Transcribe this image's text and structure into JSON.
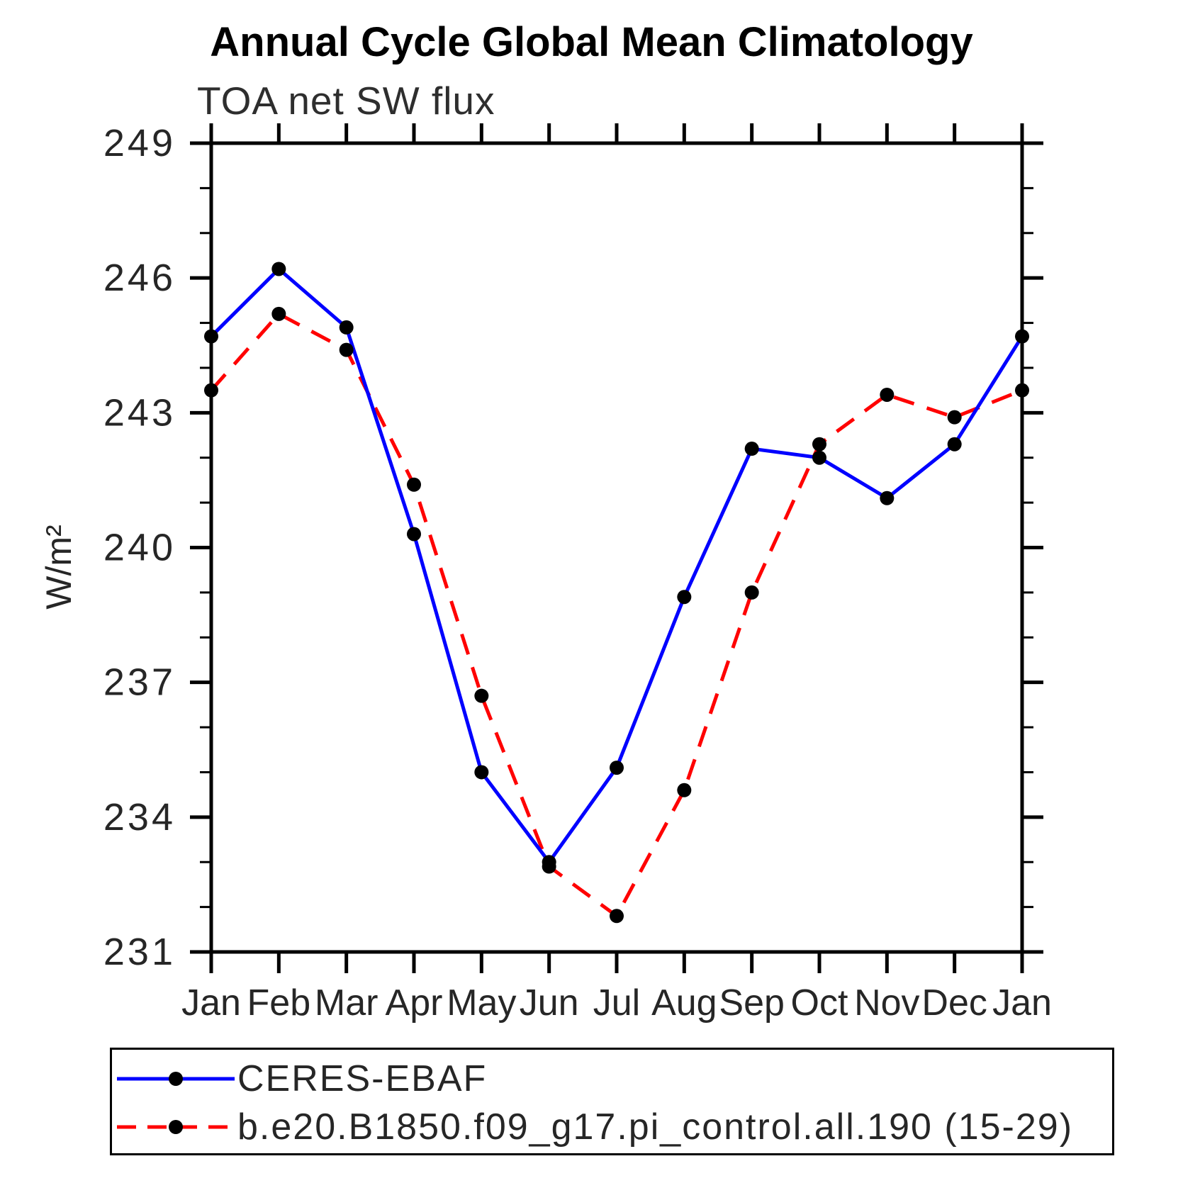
{
  "page": {
    "background": "#ffffff"
  },
  "chart_data": {
    "type": "line",
    "title": "Annual Cycle Global Mean Climatology",
    "subtitle": "TOA net SW flux",
    "xlabel": "",
    "ylabel": "W/m²",
    "ylim": [
      231,
      249
    ],
    "yticks": [
      231,
      234,
      237,
      240,
      243,
      246,
      249
    ],
    "ytick_minor_interval": 1,
    "grid": false,
    "legend_position": "bottom-left box",
    "categories": [
      "Jan",
      "Feb",
      "Mar",
      "Apr",
      "May",
      "Jun",
      "Jul",
      "Aug",
      "Sep",
      "Oct",
      "Nov",
      "Dec",
      "Jan"
    ],
    "series": [
      {
        "name": "CERES-EBAF",
        "color": "#0000ff",
        "line_style": "solid",
        "marker": "filled-circle",
        "marker_color": "#000000",
        "values": [
          244.7,
          246.2,
          244.9,
          240.3,
          235.0,
          233.0,
          235.1,
          238.9,
          242.2,
          242.0,
          241.1,
          242.3,
          244.7
        ]
      },
      {
        "name": "b.e20.B1850.f09_g17.pi_control.all.190 (15-29)",
        "color": "#ff0000",
        "line_style": "dashed",
        "marker": "filled-circle",
        "marker_color": "#000000",
        "values": [
          243.5,
          245.2,
          244.4,
          241.4,
          236.7,
          232.9,
          231.8,
          234.6,
          239.0,
          242.3,
          243.4,
          242.9,
          243.5
        ]
      }
    ]
  }
}
